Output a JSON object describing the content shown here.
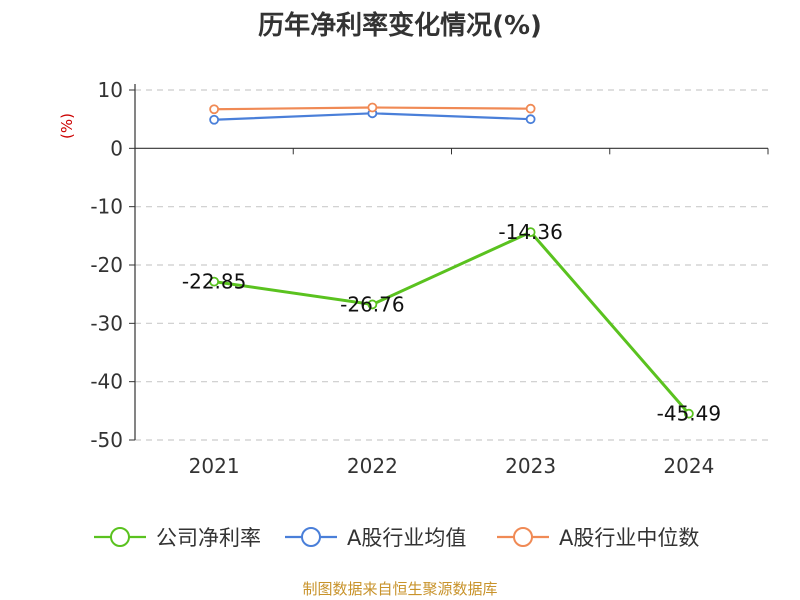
{
  "chart_data": {
    "type": "line",
    "title": "历年净利率变化情况(%)",
    "ylabel": "(%)",
    "categories": [
      "2021",
      "2022",
      "2023",
      "2024"
    ],
    "ylim": [
      -50,
      10
    ],
    "yticks": [
      10,
      0,
      -10,
      -20,
      -30,
      -40,
      -50
    ],
    "grid": "horizontal-dashed",
    "legend_position": "bottom",
    "series": [
      {
        "name": "公司净利率",
        "color": "#5ac21f",
        "values": [
          -22.85,
          -26.76,
          -14.36,
          -45.49
        ],
        "labels": [
          "-22.85",
          "-26.76",
          "-14.36",
          "-45.49"
        ]
      },
      {
        "name": "A股行业均值",
        "color": "#4a7fd9",
        "values": [
          4.9,
          6.0,
          5.0,
          null
        ]
      },
      {
        "name": "A股行业中位数",
        "color": "#f08a55",
        "values": [
          6.7,
          7.0,
          6.8,
          null
        ]
      }
    ]
  },
  "footer": {
    "source": "制图数据来自恒生聚源数据库"
  }
}
